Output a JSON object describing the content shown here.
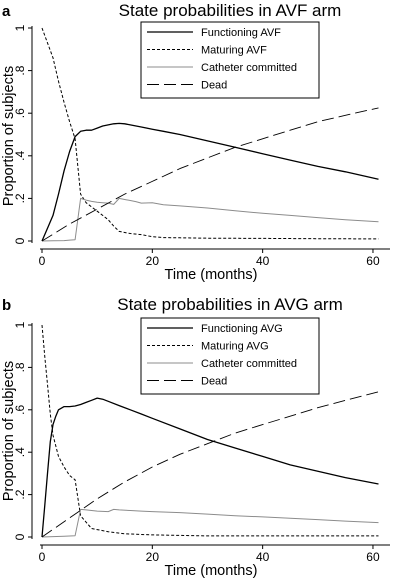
{
  "chart_data": [
    {
      "type": "line",
      "panel_letter": "a",
      "title": "State probabilities in AVF arm",
      "xlabel": "Time (months)",
      "ylabel": "Proportion of subjects",
      "xlim": [
        0,
        62
      ],
      "ylim": [
        0,
        1
      ],
      "xticks": [
        0,
        20,
        40,
        60
      ],
      "xtick_labels": [
        "0",
        "20",
        "40",
        "60"
      ],
      "yticks": [
        0,
        0.2,
        0.4,
        0.6,
        0.8,
        1
      ],
      "ytick_labels": [
        "0",
        ".2",
        ".4",
        ".6",
        ".8",
        "1"
      ],
      "legend_position": "top-center",
      "grid": false,
      "series": [
        {
          "name": "Functioning AVF",
          "style": "solid-dark",
          "color": "#000000",
          "x": [
            0,
            1,
            2,
            3,
            4,
            5,
            6,
            7,
            8,
            9,
            10,
            11,
            12,
            13,
            14,
            15,
            16,
            18,
            20,
            22,
            25,
            30,
            35,
            40,
            45,
            50,
            55,
            61
          ],
          "y": [
            0,
            0.06,
            0.12,
            0.22,
            0.33,
            0.42,
            0.49,
            0.515,
            0.52,
            0.52,
            0.53,
            0.54,
            0.545,
            0.55,
            0.552,
            0.55,
            0.545,
            0.535,
            0.525,
            0.515,
            0.5,
            0.47,
            0.44,
            0.41,
            0.38,
            0.35,
            0.325,
            0.29
          ]
        },
        {
          "name": "Maturing AVF",
          "style": "short-dash",
          "color": "#000000",
          "x": [
            0,
            1,
            2,
            3,
            4,
            5,
            6,
            7,
            8,
            9,
            10,
            11,
            12,
            13,
            14,
            15,
            16,
            18,
            20,
            22,
            25,
            30,
            40,
            50,
            61
          ],
          "y": [
            1,
            0.93,
            0.86,
            0.75,
            0.65,
            0.56,
            0.48,
            0.22,
            0.18,
            0.16,
            0.14,
            0.12,
            0.1,
            0.07,
            0.045,
            0.04,
            0.035,
            0.03,
            0.02,
            0.016,
            0.015,
            0.013,
            0.012,
            0.011,
            0.01
          ]
        },
        {
          "name": "Catheter committed",
          "style": "solid-gray",
          "color": "#8c8c8c",
          "x": [
            0,
            2,
            4,
            5,
            6,
            7,
            8,
            9,
            10,
            11,
            12,
            13,
            14,
            15,
            16,
            17,
            18,
            20,
            22,
            25,
            30,
            35,
            40,
            45,
            50,
            55,
            61
          ],
          "y": [
            0,
            0.001,
            0.002,
            0.004,
            0.006,
            0.2,
            0.192,
            0.186,
            0.182,
            0.18,
            0.178,
            0.172,
            0.2,
            0.195,
            0.19,
            0.185,
            0.178,
            0.18,
            0.17,
            0.165,
            0.155,
            0.142,
            0.13,
            0.12,
            0.11,
            0.1,
            0.09
          ]
        },
        {
          "name": "Dead",
          "style": "long-dash",
          "color": "#000000",
          "x": [
            0,
            5,
            10,
            15,
            20,
            25,
            30,
            35,
            40,
            45,
            50,
            55,
            61
          ],
          "y": [
            0,
            0.08,
            0.15,
            0.22,
            0.28,
            0.34,
            0.39,
            0.44,
            0.48,
            0.52,
            0.56,
            0.59,
            0.625
          ]
        }
      ]
    },
    {
      "type": "line",
      "panel_letter": "b",
      "title": "State probabilities in AVG arm",
      "xlabel": "Time (months)",
      "ylabel": "Proportion of subjects",
      "xlim": [
        0,
        62
      ],
      "ylim": [
        0,
        1
      ],
      "xticks": [
        0,
        20,
        40,
        60
      ],
      "xtick_labels": [
        "0",
        "20",
        "40",
        "60"
      ],
      "yticks": [
        0,
        0.2,
        0.4,
        0.6,
        0.8,
        1
      ],
      "ytick_labels": [
        "0",
        ".2",
        ".4",
        ".6",
        ".8",
        "1"
      ],
      "legend_position": "top-center",
      "grid": false,
      "series": [
        {
          "name": "Functioning AVG",
          "style": "solid-dark",
          "color": "#000000",
          "x": [
            0,
            0.5,
            1,
            1.5,
            2,
            2.5,
            3,
            4,
            5,
            6,
            7,
            8,
            9,
            10,
            11,
            12,
            14,
            16,
            18,
            20,
            25,
            30,
            35,
            40,
            45,
            50,
            55,
            61
          ],
          "y": [
            0,
            0.15,
            0.3,
            0.45,
            0.53,
            0.57,
            0.6,
            0.615,
            0.615,
            0.618,
            0.625,
            0.635,
            0.645,
            0.655,
            0.65,
            0.64,
            0.62,
            0.6,
            0.58,
            0.56,
            0.51,
            0.46,
            0.42,
            0.38,
            0.34,
            0.31,
            0.28,
            0.25
          ]
        },
        {
          "name": "Maturing AVG",
          "style": "short-dash",
          "color": "#000000",
          "x": [
            0,
            0.5,
            1,
            1.5,
            2,
            3,
            4,
            5,
            6,
            7,
            8,
            9,
            10,
            12,
            15,
            20,
            30,
            40,
            50,
            61
          ],
          "y": [
            1,
            0.85,
            0.72,
            0.58,
            0.48,
            0.38,
            0.33,
            0.29,
            0.27,
            0.1,
            0.07,
            0.04,
            0.035,
            0.025,
            0.015,
            0.01,
            0.005,
            0.005,
            0.005,
            0.005
          ]
        },
        {
          "name": "Catheter committed",
          "style": "solid-gray",
          "color": "#8c8c8c",
          "x": [
            0,
            2,
            4,
            6,
            7,
            8,
            9,
            10,
            12,
            13,
            14,
            16,
            18,
            20,
            25,
            30,
            35,
            40,
            45,
            50,
            55,
            61
          ],
          "y": [
            0,
            0.002,
            0.004,
            0.006,
            0.13,
            0.128,
            0.125,
            0.122,
            0.12,
            0.13,
            0.128,
            0.125,
            0.122,
            0.12,
            0.115,
            0.108,
            0.1,
            0.095,
            0.088,
            0.082,
            0.075,
            0.068
          ]
        },
        {
          "name": "Dead",
          "style": "long-dash",
          "color": "#000000",
          "x": [
            0,
            5,
            10,
            15,
            20,
            25,
            30,
            35,
            40,
            45,
            50,
            55,
            61
          ],
          "y": [
            0,
            0.09,
            0.18,
            0.26,
            0.33,
            0.39,
            0.44,
            0.49,
            0.53,
            0.57,
            0.61,
            0.645,
            0.685
          ]
        }
      ]
    }
  ]
}
